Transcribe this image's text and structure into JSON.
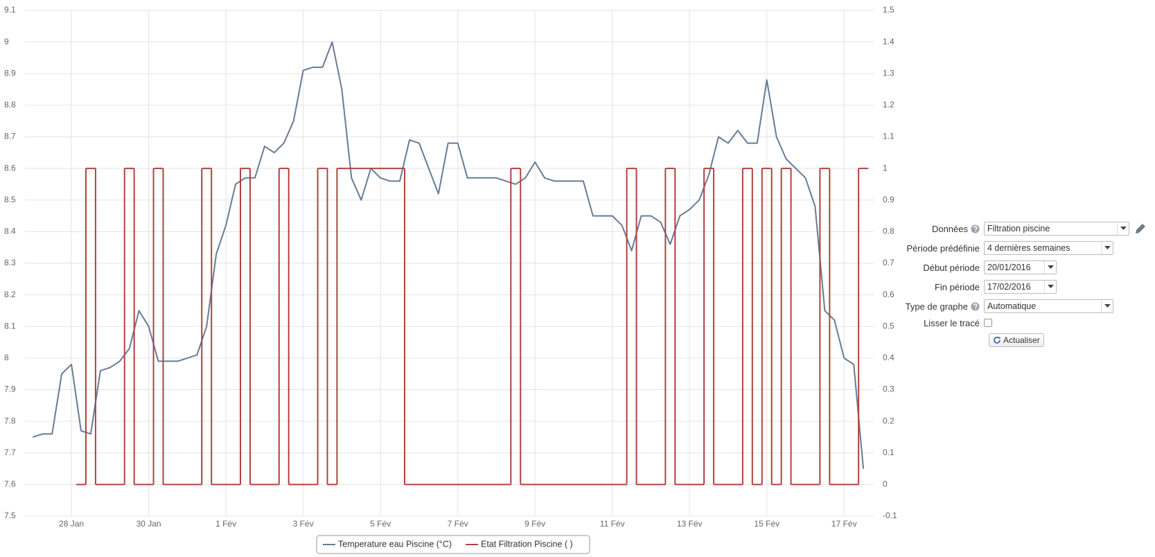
{
  "chart_data": {
    "type": "line",
    "categories": [
      null,
      null,
      null,
      null,
      "28 Jan",
      null,
      null,
      null,
      null,
      null,
      null,
      null,
      "30 Jan",
      null,
      null,
      null,
      null,
      null,
      null,
      null,
      "1 Fév",
      null,
      null,
      null,
      null,
      null,
      null,
      null,
      "3 Fév",
      null,
      null,
      null,
      null,
      null,
      null,
      null,
      "5 Fév",
      null,
      null,
      null,
      null,
      null,
      null,
      null,
      "7 Fév",
      null,
      null,
      null,
      null,
      null,
      null,
      null,
      "9 Fév",
      null,
      null,
      null,
      null,
      null,
      null,
      null,
      "11 Fév",
      null,
      null,
      null,
      null,
      null,
      null,
      null,
      "13 Fév",
      null,
      null,
      null,
      null,
      null,
      null,
      null,
      "15 Fév",
      null,
      null,
      null,
      null,
      null,
      null,
      null,
      "17 Fév",
      null,
      null
    ],
    "series": [
      {
        "name": "Temperature eau Piscine (°C)",
        "color": "#667b96",
        "values": [
          7.75,
          7.76,
          7.76,
          7.95,
          7.98,
          7.77,
          7.76,
          7.96,
          7.97,
          7.99,
          8.03,
          8.15,
          8.1,
          7.99,
          7.99,
          7.99,
          8.0,
          8.01,
          8.1,
          8.33,
          8.42,
          8.55,
          8.57,
          8.57,
          8.67,
          8.65,
          8.68,
          8.75,
          8.91,
          8.92,
          8.92,
          9.0,
          8.85,
          8.57,
          8.5,
          8.6,
          8.57,
          8.56,
          8.56,
          8.69,
          8.68,
          8.6,
          8.52,
          8.68,
          8.68,
          8.57,
          8.57,
          8.57,
          8.57,
          8.56,
          8.55,
          8.57,
          8.62,
          8.57,
          8.56,
          8.56,
          8.56,
          8.56,
          8.45,
          8.45,
          8.45,
          8.42,
          8.34,
          8.45,
          8.45,
          8.43,
          8.36,
          8.45,
          8.47,
          8.5,
          8.58,
          8.7,
          8.68,
          8.72,
          8.68,
          8.68,
          8.88,
          8.7,
          8.63,
          8.6,
          8.57,
          8.48,
          8.15,
          8.12,
          8.0,
          7.98,
          7.65
        ]
      },
      {
        "name": "Etat Filtration Piscine ( )",
        "color": "#b0413e",
        "axis": "y2",
        "step": true,
        "values": [
          null,
          null,
          null,
          null,
          null,
          0,
          1,
          0,
          0,
          0,
          1,
          0,
          0,
          1,
          0,
          0,
          0,
          0,
          1,
          0,
          0,
          0,
          1,
          0,
          0,
          0,
          1,
          0,
          0,
          0,
          1,
          0,
          1,
          1,
          1,
          1,
          1,
          1,
          1,
          0,
          0,
          0,
          0,
          0,
          0,
          0,
          0,
          0,
          0,
          0,
          1,
          0,
          0,
          0,
          0,
          0,
          0,
          0,
          0,
          0,
          0,
          0,
          1,
          0,
          0,
          0,
          1,
          0,
          0,
          0,
          1,
          0,
          0,
          0,
          1,
          0,
          1,
          0,
          1,
          0,
          0,
          0,
          1,
          0,
          0,
          0,
          1
        ]
      }
    ],
    "ylim": [
      7.5,
      9.1
    ],
    "yticks": [
      7.5,
      7.6,
      7.7,
      7.8,
      7.9,
      8,
      8.1,
      8.2,
      8.3,
      8.4,
      8.5,
      8.6,
      8.7,
      8.8,
      8.9,
      9,
      9.1
    ],
    "y2lim": [
      -0.1,
      1.5
    ],
    "y2ticks": [
      -0.1,
      0,
      0.1,
      0.2,
      0.3,
      0.4,
      0.5,
      0.6,
      0.7,
      0.8,
      0.9,
      1,
      1.1,
      1.2,
      1.3,
      1.4,
      1.5
    ],
    "grid": true
  },
  "form": {
    "fields": [
      {
        "label": "Données",
        "value": "Filtration piscine"
      },
      {
        "label": "Période prédéfinie",
        "value": "4 dernières semaines"
      },
      {
        "label": "Début période",
        "value": "20/01/2016"
      },
      {
        "label": "Fin période",
        "value": "17/02/2016"
      },
      {
        "label": "Type de graphe",
        "value": "Automatique"
      }
    ],
    "smooth_label": "Lisser le tracé",
    "button": "Actualiser"
  }
}
